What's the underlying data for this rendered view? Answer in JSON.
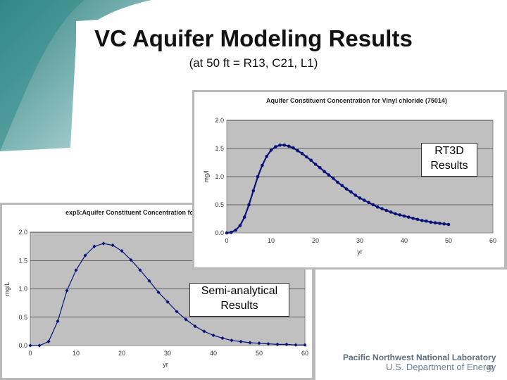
{
  "slide": {
    "title": "VC Aquifer Modeling Results",
    "subtitle": "(at 50 ft = R13, C21, L1)"
  },
  "footer": {
    "org": "Pacific Northwest National Laboratory",
    "dept": "U.S. Department of Energy",
    "page": "43"
  },
  "colors": {
    "series": "#0a1478",
    "plot_bg": "#c0c0c0",
    "deco_teal": "#2f8a8a",
    "footer_text": "#5b6f82"
  },
  "chart_data": [
    {
      "type": "scatter",
      "title": "Aquifer Constituent Concentration for Vinyl chloride (75014)",
      "xlabel": "yr",
      "ylabel": "mg/l",
      "xlim": [
        0,
        60
      ],
      "ylim": [
        0,
        2.0
      ],
      "xticks": [
        "0",
        "10",
        "20",
        "30",
        "40",
        "50",
        "60"
      ],
      "yticks": [
        "0.0",
        "0.5",
        "1.0",
        "1.5",
        "2.0"
      ],
      "grid": true,
      "callout": "RT3D Results",
      "series": [
        {
          "x": [
            0,
            1,
            2,
            3,
            4,
            5,
            6,
            7,
            8,
            9,
            10,
            11,
            12,
            13,
            14,
            15,
            16,
            17,
            18,
            19,
            20,
            21,
            22,
            23,
            24,
            25,
            26,
            27,
            28,
            29,
            30,
            31,
            32,
            33,
            34,
            35,
            36,
            37,
            38,
            39,
            40,
            41,
            42,
            43,
            44,
            45,
            46,
            47,
            48,
            49,
            50
          ],
          "y": [
            0.0,
            0.01,
            0.05,
            0.13,
            0.28,
            0.5,
            0.75,
            1.0,
            1.2,
            1.36,
            1.47,
            1.53,
            1.56,
            1.56,
            1.54,
            1.51,
            1.46,
            1.41,
            1.35,
            1.29,
            1.22,
            1.16,
            1.09,
            1.03,
            0.97,
            0.9,
            0.84,
            0.78,
            0.73,
            0.67,
            0.62,
            0.58,
            0.54,
            0.5,
            0.46,
            0.43,
            0.4,
            0.37,
            0.34,
            0.32,
            0.3,
            0.28,
            0.26,
            0.24,
            0.22,
            0.21,
            0.19,
            0.18,
            0.17,
            0.16,
            0.15
          ]
        }
      ]
    },
    {
      "type": "line",
      "title": "exp5:Aquifer Constituent Concentration for V",
      "xlabel": "yr",
      "ylabel": "mg/L",
      "xlim": [
        0,
        60
      ],
      "ylim": [
        0,
        2.0
      ],
      "xticks": [
        "0",
        "10",
        "20",
        "30",
        "40",
        "50",
        "60"
      ],
      "yticks": [
        "0.0",
        "0.5",
        "1.0",
        "1.5",
        "2.0"
      ],
      "grid": true,
      "callout": "Semi-analytical Results",
      "series": [
        {
          "x": [
            0,
            2,
            4,
            6,
            8,
            10,
            12,
            14,
            16,
            18,
            20,
            22,
            24,
            26,
            28,
            30,
            32,
            34,
            36,
            38,
            40,
            42,
            44,
            46,
            48,
            50,
            52,
            54,
            56,
            58,
            60
          ],
          "y": [
            0.0,
            0.0,
            0.07,
            0.43,
            0.97,
            1.33,
            1.59,
            1.75,
            1.8,
            1.77,
            1.67,
            1.51,
            1.33,
            1.14,
            0.94,
            0.77,
            0.6,
            0.46,
            0.34,
            0.25,
            0.18,
            0.13,
            0.09,
            0.07,
            0.05,
            0.04,
            0.03,
            0.02,
            0.02,
            0.01,
            0.01
          ]
        }
      ]
    }
  ]
}
